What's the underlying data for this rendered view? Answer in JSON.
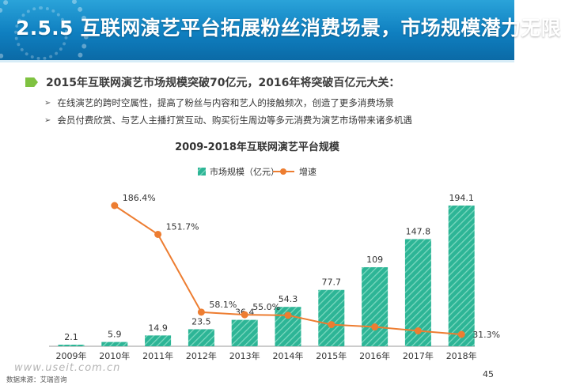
{
  "header": {
    "title": "2.5.5 互联网演艺平台拓展粉丝消费场景，市场规模潜力无限"
  },
  "lead": "2015年互联网演艺市场规模突破70亿元，2016年将突破百亿元大关：",
  "bullets": [
    "在线演艺的跨时空属性，提高了粉丝与内容和艺人的接触频次，创造了更多消费场景",
    "会员付费欣赏、与艺人主播打赏互动、购买衍生周边等多元消费为演艺市场带来诸多机遇"
  ],
  "chart_data": {
    "type": "bar",
    "title": "2009-2018年互联网演艺平台规模",
    "categories": [
      "2009年",
      "2010年",
      "2011年",
      "2012年",
      "2013年",
      "2014年",
      "2015年",
      "2016年",
      "2017年",
      "2018年"
    ],
    "series": [
      {
        "name": "市场规模（亿元）",
        "type": "bar",
        "values": [
          2.1,
          5.9,
          14.9,
          23.5,
          36.4,
          54.3,
          77.7,
          109,
          147.8,
          194.1
        ],
        "labels": [
          "2.1",
          "5.9",
          "14.9",
          "23.5",
          "36.4",
          "54.3",
          "77.7",
          "109",
          "147.8",
          "194.1"
        ]
      },
      {
        "name": "增速",
        "type": "line",
        "values": [
          null,
          186.4,
          151.7,
          58.1,
          55.0,
          54.3,
          43.1,
          40.3,
          35.6,
          31.3
        ],
        "labels": [
          "",
          "186.4%",
          "151.7%",
          "58.1%",
          "55.0%",
          "",
          "",
          "",
          "",
          "31.3%"
        ]
      }
    ],
    "legend_position": "top-center",
    "grid": false,
    "colors": {
      "bar": "#2db596",
      "bar_stripe": "#7fd9c1",
      "line": "#ed7d31"
    }
  },
  "footer": {
    "watermark": "www.useit.com.cn",
    "source": "数据来源：艾瑞咨询",
    "page": "45"
  }
}
